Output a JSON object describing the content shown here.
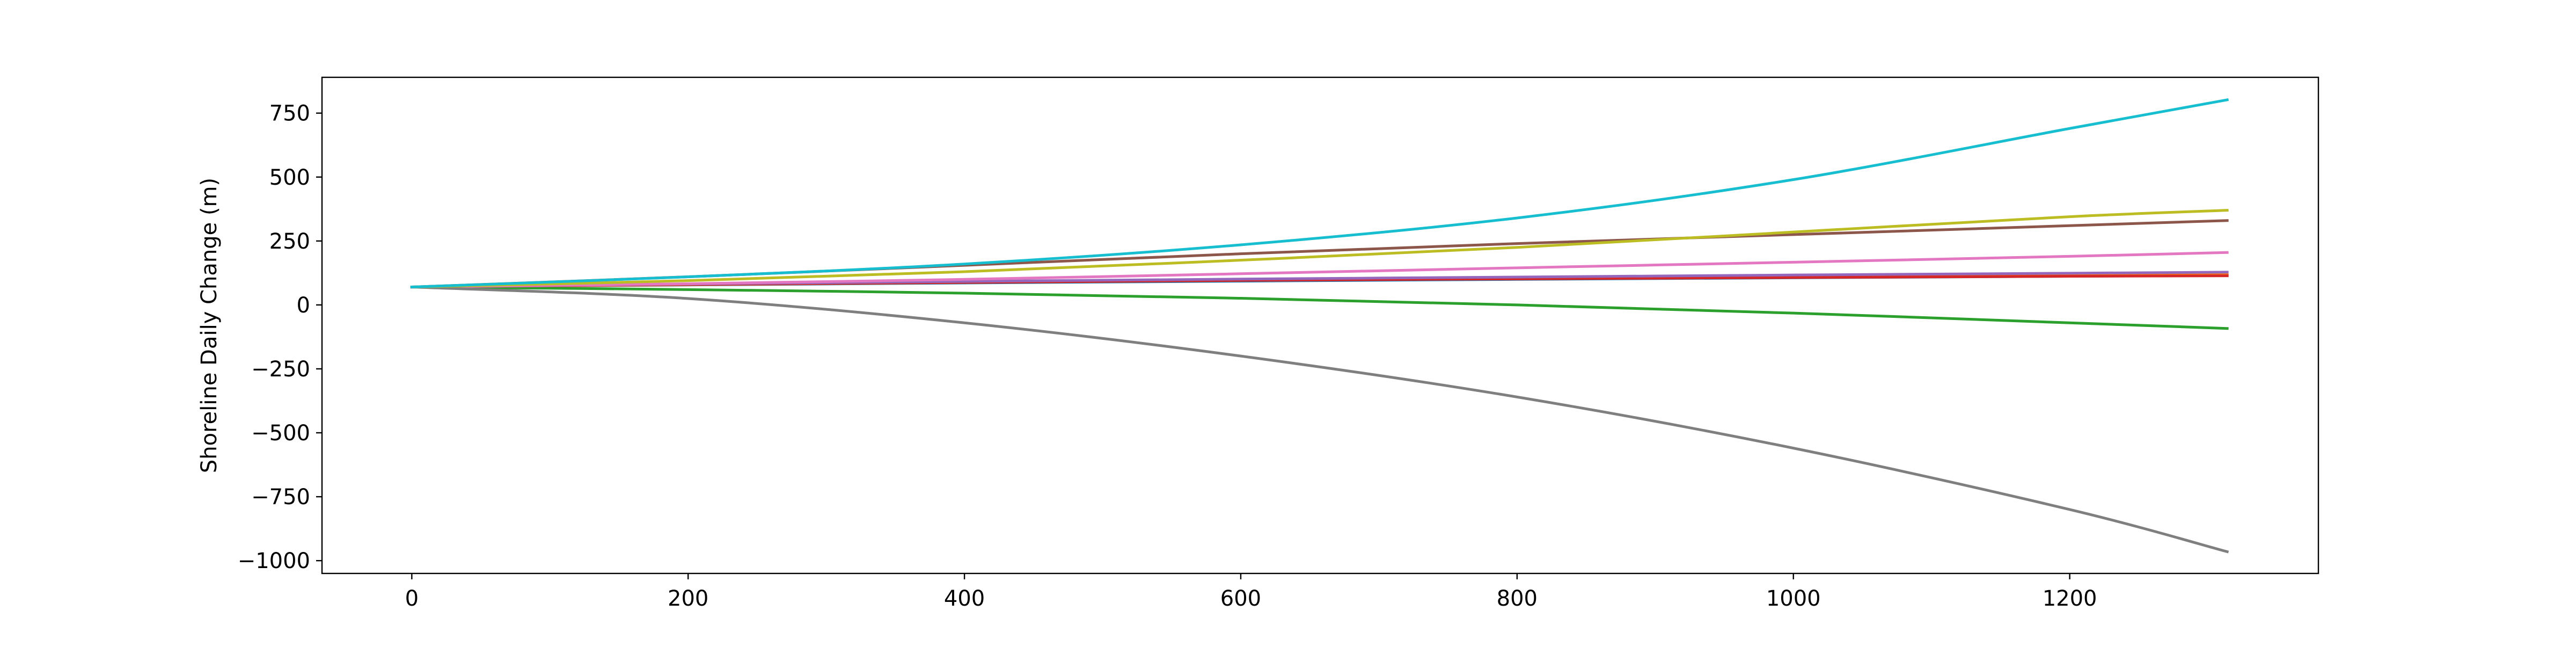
{
  "chart_data": {
    "type": "line",
    "title": "",
    "xlabel": "",
    "ylabel": "Shoreline Daily Change (m)",
    "xlim": [
      -65,
      1380
    ],
    "ylim": [
      -1050,
      890
    ],
    "xticks": [
      0,
      200,
      400,
      600,
      800,
      1000,
      1200
    ],
    "yticks": [
      750,
      500,
      250,
      0,
      -250,
      -500,
      -750,
      -1000
    ],
    "xtick_labels": [
      "0",
      "200",
      "400",
      "600",
      "800",
      "1000",
      "1200"
    ],
    "ytick_labels": [
      "750",
      "500",
      "250",
      "0",
      "−250",
      "−500",
      "−750",
      "−1000"
    ],
    "grid": false,
    "legend": "none",
    "x": [
      0,
      200,
      400,
      600,
      800,
      1000,
      1200,
      1314
    ],
    "series": [
      {
        "color": "#1f77b4",
        "values": [
          70,
          78,
          86,
          93,
          100,
          106,
          112,
          115
        ]
      },
      {
        "color": "#ff7f0e",
        "values": [
          70,
          79,
          88,
          96,
          103,
          110,
          116,
          119
        ]
      },
      {
        "color": "#2ca02c",
        "values": [
          70,
          60,
          46,
          26,
          0,
          -32,
          -70,
          -92
        ]
      },
      {
        "color": "#d62728",
        "values": [
          70,
          80,
          88,
          96,
          102,
          107,
          112,
          114
        ]
      },
      {
        "color": "#9467bd",
        "values": [
          70,
          82,
          92,
          101,
          109,
          117,
          124,
          128
        ]
      },
      {
        "color": "#8c564b",
        "values": [
          70,
          110,
          155,
          200,
          240,
          275,
          310,
          330
        ]
      },
      {
        "color": "#e377c2",
        "values": [
          70,
          83,
          100,
          122,
          145,
          167,
          190,
          205
        ]
      },
      {
        "color": "#7f7f7f",
        "values": [
          70,
          25,
          -70,
          -200,
          -360,
          -560,
          -800,
          -965
        ]
      },
      {
        "color": "#bcbd22",
        "values": [
          70,
          95,
          130,
          175,
          225,
          285,
          345,
          370
        ]
      },
      {
        "color": "#17becf",
        "values": [
          70,
          110,
          160,
          235,
          340,
          490,
          690,
          802
        ]
      }
    ]
  }
}
